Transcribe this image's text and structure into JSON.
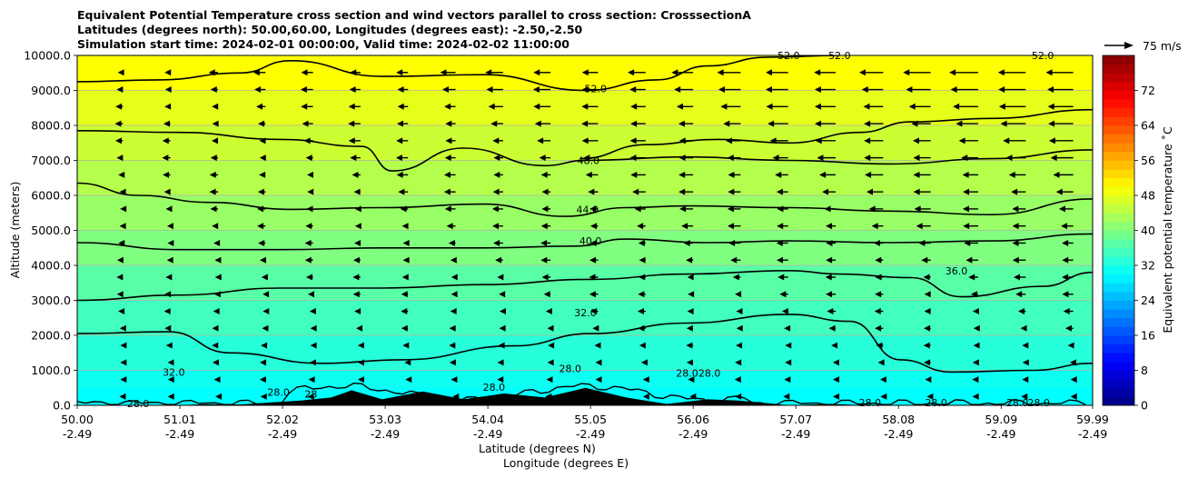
{
  "chart_data": {
    "type": "cross-section contour plot with wind vectors",
    "title_lines": [
      "Equivalent Potential Temperature cross section and wind vectors parallel to cross section: CrosssectionA",
      "Latitudes (degrees north): 50.00,60.00, Longitudes (degrees east): -2.50,-2.50",
      "Simulation start time: 2024-02-01 00:00:00, Valid time: 2024-02-02 11:00:00"
    ],
    "ylabel": "Altitude (meters)",
    "xlabel_lines": [
      "Latitude (degrees N)",
      "Longitude (degrees E)"
    ],
    "ylim": [
      0,
      10000
    ],
    "xlim": [
      50.0,
      59.99
    ],
    "yticks": [
      "0.0",
      "1000.0",
      "2000.0",
      "3000.0",
      "4000.0",
      "5000.0",
      "6000.0",
      "7000.0",
      "8000.0",
      "9000.0",
      "10000.0"
    ],
    "ytick_values": [
      0,
      1000,
      2000,
      3000,
      4000,
      5000,
      6000,
      7000,
      8000,
      9000,
      10000
    ],
    "xtick_latitudes": [
      "50.00",
      "51.01",
      "52.02",
      "53.03",
      "54.04",
      "55.05",
      "56.06",
      "57.07",
      "58.08",
      "59.09",
      "59.99"
    ],
    "xtick_lat_values": [
      50.0,
      51.01,
      52.02,
      53.03,
      54.04,
      55.05,
      56.06,
      57.07,
      58.08,
      59.09,
      59.99
    ],
    "xtick_longitudes": [
      "-2.49",
      "-2.49",
      "-2.49",
      "-2.49",
      "-2.49",
      "-2.49",
      "-2.49",
      "-2.49",
      "-2.49",
      "-2.49",
      "-2.49"
    ],
    "grid": "horizontal",
    "colorbar": {
      "label": "Equivalent potential temperature ˚C",
      "ticks": [
        "0",
        "8",
        "16",
        "24",
        "32",
        "40",
        "48",
        "56",
        "64",
        "72"
      ],
      "tick_values": [
        0,
        8,
        16,
        24,
        32,
        40,
        48,
        56,
        64,
        72
      ],
      "range": [
        0,
        80
      ],
      "colormap": "jet"
    },
    "quiver_key": {
      "label": "75 m/s",
      "speed": 75
    },
    "contour_labels": [
      {
        "text": "28.0",
        "lat": 50.6,
        "alt": 50
      },
      {
        "text": "32.0",
        "lat": 50.95,
        "alt": 950
      },
      {
        "text": "28.0",
        "lat": 51.98,
        "alt": 380
      },
      {
        "text": "28",
        "lat": 52.3,
        "alt": 330
      },
      {
        "text": "28.0",
        "lat": 54.1,
        "alt": 520
      },
      {
        "text": "28.0",
        "lat": 54.85,
        "alt": 1050
      },
      {
        "text": "28.0",
        "lat": 56.0,
        "alt": 920
      },
      {
        "text": "28.0",
        "lat": 56.22,
        "alt": 920
      },
      {
        "text": "28.0",
        "lat": 57.8,
        "alt": 80
      },
      {
        "text": "28.0",
        "lat": 58.45,
        "alt": 80
      },
      {
        "text": "28.0",
        "lat": 59.25,
        "alt": 80
      },
      {
        "text": "28.0",
        "lat": 59.46,
        "alt": 80
      },
      {
        "text": "32.0",
        "lat": 55.0,
        "alt": 2650
      },
      {
        "text": "36.0",
        "lat": 58.65,
        "alt": 3850
      },
      {
        "text": "40.0",
        "lat": 55.05,
        "alt": 4700
      },
      {
        "text": "44.0",
        "lat": 55.02,
        "alt": 5600
      },
      {
        "text": "48.0",
        "lat": 55.03,
        "alt": 7000
      },
      {
        "text": "52.0",
        "lat": 55.1,
        "alt": 9050
      },
      {
        "text": "52.0",
        "lat": 57.0,
        "alt": 10000
      },
      {
        "text": "52.0",
        "lat": 57.5,
        "alt": 10000
      },
      {
        "text": "52.0",
        "lat": 59.5,
        "alt": 10000
      }
    ],
    "contour_levels": [
      28,
      32,
      36,
      40,
      44,
      48,
      52
    ],
    "contour_lines": [
      {
        "level": 32,
        "points": [
          [
            50.0,
            2050
          ],
          [
            50.9,
            2100
          ],
          [
            51.5,
            1500
          ],
          [
            52.4,
            1200
          ],
          [
            53.2,
            1300
          ],
          [
            54.3,
            1700
          ],
          [
            55.05,
            2050
          ],
          [
            56.0,
            2350
          ],
          [
            57.0,
            2600
          ],
          [
            57.6,
            2400
          ],
          [
            58.1,
            1300
          ],
          [
            58.6,
            950
          ],
          [
            59.4,
            1000
          ],
          [
            59.99,
            1200
          ]
        ]
      },
      {
        "level": 36,
        "points": [
          [
            50.0,
            3000
          ],
          [
            51.0,
            3150
          ],
          [
            52.0,
            3350
          ],
          [
            53.0,
            3350
          ],
          [
            54.0,
            3450
          ],
          [
            55.05,
            3600
          ],
          [
            56.0,
            3750
          ],
          [
            57.0,
            3850
          ],
          [
            57.5,
            3750
          ],
          [
            58.2,
            3650
          ],
          [
            58.7,
            3100
          ],
          [
            59.5,
            3400
          ],
          [
            59.99,
            3800
          ]
        ]
      },
      {
        "level": 40,
        "points": [
          [
            50.0,
            4650
          ],
          [
            51.0,
            4450
          ],
          [
            52.0,
            4450
          ],
          [
            53.0,
            4500
          ],
          [
            54.0,
            4500
          ],
          [
            54.9,
            4550
          ],
          [
            55.4,
            4750
          ],
          [
            56.2,
            4650
          ],
          [
            57.0,
            4700
          ],
          [
            58.0,
            4650
          ],
          [
            59.0,
            4700
          ],
          [
            59.99,
            4900
          ]
        ]
      },
      {
        "level": 44,
        "points": [
          [
            50.0,
            6350
          ],
          [
            50.6,
            6000
          ],
          [
            51.3,
            5800
          ],
          [
            52.1,
            5600
          ],
          [
            53.0,
            5650
          ],
          [
            54.0,
            5750
          ],
          [
            54.8,
            5400
          ],
          [
            55.4,
            5650
          ],
          [
            56.0,
            5700
          ],
          [
            57.0,
            5650
          ],
          [
            58.0,
            5550
          ],
          [
            59.0,
            5450
          ],
          [
            59.99,
            5900
          ]
        ]
      },
      {
        "level": 48,
        "points": [
          [
            50.0,
            7850
          ],
          [
            51.0,
            7800
          ],
          [
            52.0,
            7600
          ],
          [
            52.8,
            7400
          ],
          [
            53.1,
            6700
          ],
          [
            53.8,
            7350
          ],
          [
            54.6,
            6850
          ],
          [
            55.0,
            7000
          ],
          [
            56.0,
            7100
          ],
          [
            57.0,
            7000
          ],
          [
            58.0,
            6900
          ],
          [
            59.0,
            7050
          ],
          [
            59.99,
            7300
          ]
        ]
      },
      {
        "level": 52,
        "points": [
          [
            50.0,
            9250
          ],
          [
            50.8,
            9300
          ],
          [
            51.6,
            9500
          ],
          [
            52.1,
            9850
          ],
          [
            53.0,
            9400
          ],
          [
            54.0,
            9450
          ],
          [
            55.0,
            9000
          ],
          [
            55.7,
            9300
          ],
          [
            56.2,
            9700
          ],
          [
            56.8,
            9950
          ],
          [
            57.5,
            10000
          ]
        ]
      },
      {
        "level": 48,
        "points": [
          [
            54.95,
            7050
          ],
          [
            55.6,
            7450
          ],
          [
            56.3,
            7600
          ],
          [
            57.0,
            7500
          ],
          [
            57.7,
            7800
          ],
          [
            58.2,
            8100
          ],
          [
            59.0,
            8200
          ],
          [
            59.99,
            8450
          ]
        ]
      }
    ],
    "terrain": [
      [
        50.0,
        0
      ],
      [
        50.5,
        0
      ],
      [
        50.7,
        60
      ],
      [
        51.3,
        30
      ],
      [
        51.6,
        100
      ],
      [
        52.2,
        60
      ],
      [
        52.5,
        300
      ],
      [
        52.7,
        350
      ],
      [
        53.0,
        250
      ],
      [
        53.4,
        320
      ],
      [
        53.8,
        250
      ],
      [
        54.2,
        260
      ],
      [
        54.6,
        300
      ],
      [
        55.0,
        420
      ],
      [
        55.4,
        300
      ],
      [
        55.8,
        40
      ],
      [
        56.2,
        250
      ],
      [
        56.5,
        60
      ],
      [
        57.0,
        80
      ],
      [
        57.4,
        40
      ],
      [
        57.7,
        10
      ],
      [
        58.0,
        0
      ],
      [
        59.99,
        0
      ]
    ],
    "theta_e_field": {
      "altitude_bands": [
        0,
        500,
        1000,
        2000,
        3000,
        4000,
        5000,
        6000,
        7000,
        8000,
        9000,
        10000
      ],
      "values": [
        30,
        31,
        33,
        35,
        37,
        40,
        42,
        44,
        46,
        48,
        50,
        53
      ]
    },
    "wind_field": {
      "description": "winds parallel to section mostly from the north (arrows pointing toward lower latitude); weak near surface, strongest aloft at high latitudes",
      "u_aloft_south": -8,
      "u_aloft_north": -45,
      "u_surface": -5
    }
  }
}
